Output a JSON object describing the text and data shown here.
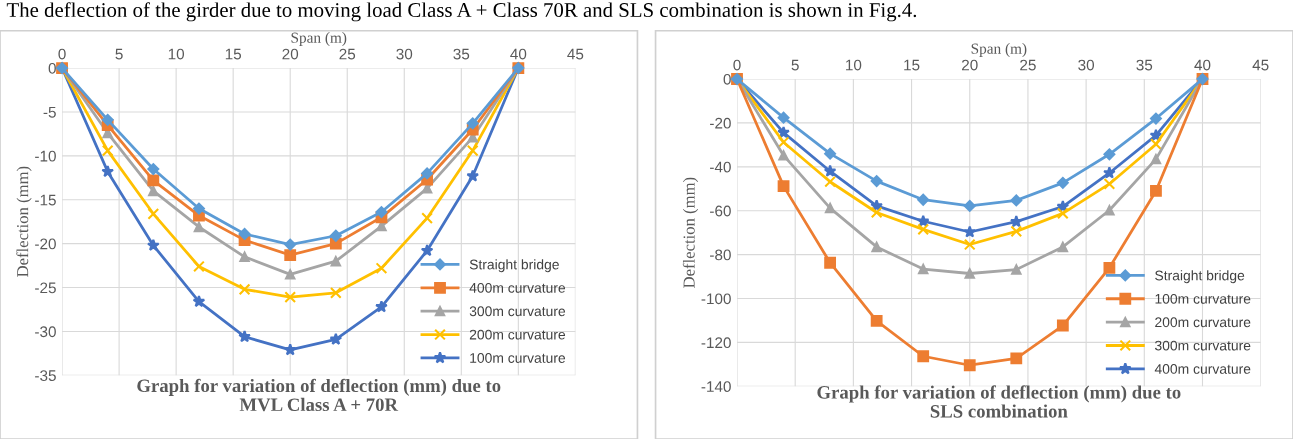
{
  "chart_data": [
    {
      "type": "line",
      "title": "Graph for variation of deflection (mm) due to\nMVL Class A + 70R",
      "xlabel": "Span (m)",
      "ylabel": "Deflection (mm)",
      "annotations": [
        "The deflection of the girder due to moving load Class A + Class 70R and SLS combination is shown in Fig.4."
      ],
      "x": [
        0,
        4,
        8,
        12,
        16,
        20,
        24,
        28,
        32,
        36,
        40
      ],
      "xlim": [
        0,
        45
      ],
      "xticks": [
        0,
        5,
        10,
        15,
        20,
        25,
        30,
        35,
        40,
        45
      ],
      "ylim": [
        -35,
        0
      ],
      "yticks": [
        -35,
        -30,
        -25,
        -20,
        -15,
        -10,
        -5,
        0
      ],
      "grid": true,
      "legend": "bottom right",
      "series": [
        {
          "name": "Straight bridge",
          "color": "#5b9bd5",
          "marker": "diamond",
          "values": [
            0,
            -5.9,
            -11.5,
            -16,
            -18.9,
            -20.1,
            -19.1,
            -16.4,
            -12,
            -6.3,
            0
          ]
        },
        {
          "name": "400m curvature",
          "color": "#ed7d31",
          "marker": "square",
          "values": [
            0,
            -6.5,
            -12.8,
            -16.8,
            -19.6,
            -21.3,
            -20,
            -17,
            -12.7,
            -7,
            0
          ]
        },
        {
          "name": "300m curvature",
          "color": "#a5a5a5",
          "marker": "triangle",
          "values": [
            0,
            -7.4,
            -14,
            -18.1,
            -21.5,
            -23.5,
            -22,
            -18,
            -13.7,
            -7.9,
            0
          ]
        },
        {
          "name": "200m curvature",
          "color": "#ffc000",
          "marker": "cross",
          "values": [
            0,
            -9.4,
            -16.6,
            -22.6,
            -25.2,
            -26.1,
            -25.6,
            -22.8,
            -17.1,
            -9.4,
            0
          ]
        },
        {
          "name": "100m curvature",
          "color": "#4472c4",
          "marker": "star",
          "values": [
            0,
            -11.8,
            -20.2,
            -26.6,
            -30.6,
            -32.1,
            -30.9,
            -27.2,
            -20.8,
            -12.3,
            0
          ]
        }
      ]
    },
    {
      "type": "line",
      "title": "Graph for variation of deflection (mm) due to\nSLS combination",
      "xlabel": "Span (m)",
      "ylabel": "Deflection (mm)",
      "x": [
        0,
        4,
        8,
        12,
        16,
        20,
        24,
        28,
        32,
        36,
        40
      ],
      "xlim": [
        0,
        45
      ],
      "xticks": [
        0,
        5,
        10,
        15,
        20,
        25,
        30,
        35,
        40,
        45
      ],
      "ylim": [
        -140,
        0
      ],
      "yticks": [
        -140,
        -120,
        -100,
        -80,
        -60,
        -40,
        -20,
        0
      ],
      "grid": true,
      "legend": "bottom right",
      "series": [
        {
          "name": "Straight bridge",
          "color": "#5b9bd5",
          "marker": "diamond",
          "values": [
            0,
            -17.6,
            -34,
            -46.5,
            -55,
            -57.8,
            -55.3,
            -47.3,
            -34.3,
            -18,
            0
          ]
        },
        {
          "name": "100m curvature",
          "color": "#ed7d31",
          "marker": "square",
          "values": [
            0,
            -48.8,
            -83.7,
            -110.2,
            -126.3,
            -130.4,
            -127.3,
            -112.3,
            -86,
            -51,
            0
          ]
        },
        {
          "name": "200m curvature",
          "color": "#a5a5a5",
          "marker": "triangle",
          "values": [
            0,
            -34.8,
            -58.8,
            -76.5,
            -86.6,
            -88.6,
            -86.8,
            -76.5,
            -59.8,
            -36.5,
            0
          ]
        },
        {
          "name": "300m curvature",
          "color": "#ffc000",
          "marker": "cross",
          "values": [
            0,
            -28.8,
            -46.8,
            -60.8,
            -68.5,
            -75.4,
            -69.4,
            -61.2,
            -47.8,
            -29.7,
            0
          ]
        },
        {
          "name": "400m curvature",
          "color": "#4472c4",
          "marker": "star",
          "values": [
            0,
            -24.4,
            -42,
            -57.8,
            -64.8,
            -69.7,
            -65,
            -58.1,
            -42.8,
            -25.7,
            0
          ]
        }
      ]
    }
  ]
}
